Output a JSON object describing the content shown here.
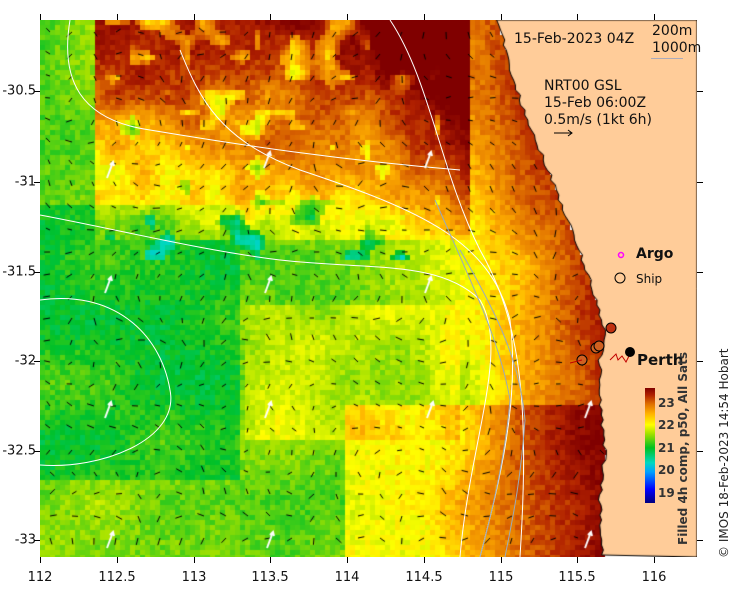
{
  "map": {
    "title_time": "15-Feb-2023 04Z",
    "depth_contours": [
      "200m",
      "1000m"
    ],
    "current_source": "NRT00 GSL",
    "current_time": "15-Feb 06:00Z",
    "current_scale": "0.5m/s (1kt 6h)",
    "legend": {
      "argo": "Argo",
      "ship": "Ship"
    },
    "place_label": "Perth",
    "x_ticks": [
      "112",
      "112.5",
      "113",
      "113.5",
      "114",
      "114.5",
      "115",
      "115.5",
      "116"
    ],
    "y_ticks": [
      "-30.5",
      "-31",
      "-31.5",
      "-32",
      "-32.5",
      "-33"
    ],
    "colorbar": {
      "ticks": [
        "23",
        "22",
        "21",
        "20",
        "19"
      ],
      "label": "Filled 4h comp, p50, All Sats",
      "range": [
        18.8,
        23.4
      ]
    },
    "credit": "© IMOS 18-Feb-2023 14:54 Hobart",
    "colors": {
      "land": "#ffcc99",
      "argo": "#ff00ff"
    }
  }
}
